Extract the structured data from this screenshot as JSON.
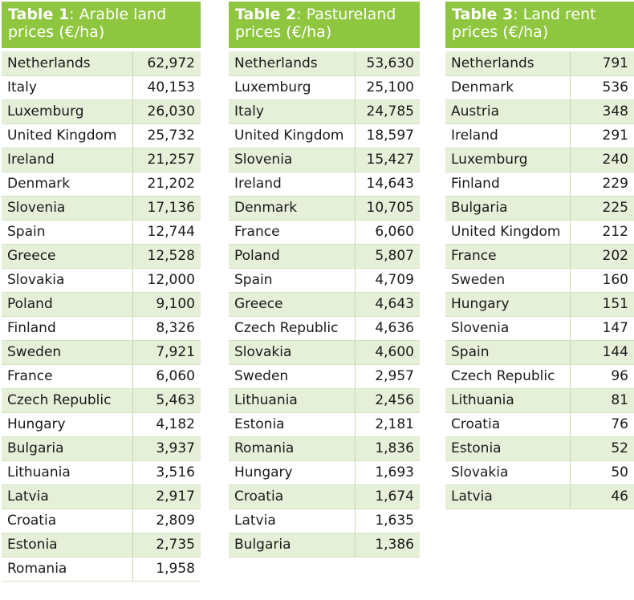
{
  "tables": [
    {
      "title_bold": "Table 1",
      "title_rest": ": Arable land prices (€/ha)",
      "rows": [
        [
          "Netherlands",
          "62,972"
        ],
        [
          "Italy",
          "40,153"
        ],
        [
          "Luxemburg",
          "26,030"
        ],
        [
          "United Kingdom",
          "25,732"
        ],
        [
          "Ireland",
          "21,257"
        ],
        [
          "Denmark",
          "21,202"
        ],
        [
          "Slovenia",
          "17,136"
        ],
        [
          "Spain",
          "12,744"
        ],
        [
          "Greece",
          "12,528"
        ],
        [
          "Slovakia",
          "12,000"
        ],
        [
          "Poland",
          "9,100"
        ],
        [
          "Finland",
          "8,326"
        ],
        [
          "Sweden",
          "7,921"
        ],
        [
          "France",
          "6,060"
        ],
        [
          "Czech Republic",
          "5,463"
        ],
        [
          "Hungary",
          "4,182"
        ],
        [
          "Bulgaria",
          "3,937"
        ],
        [
          "Lithuania",
          "3,516"
        ],
        [
          "Latvia",
          "2,917"
        ],
        [
          "Croatia",
          "2,809"
        ],
        [
          "Estonia",
          "2,735"
        ],
        [
          "Romania",
          "1,958"
        ]
      ]
    },
    {
      "title_bold": "Table 2",
      "title_rest": ": Pastureland prices (€/ha)",
      "rows": [
        [
          "Netherlands",
          "53,630"
        ],
        [
          "Luxemburg",
          "25,100"
        ],
        [
          "Italy",
          "24,785"
        ],
        [
          "United Kingdom",
          "18,597"
        ],
        [
          "Slovenia",
          "15,427"
        ],
        [
          "Ireland",
          "14,643"
        ],
        [
          "Denmark",
          "10,705"
        ],
        [
          "France",
          "6,060"
        ],
        [
          "Poland",
          "5,807"
        ],
        [
          "Spain",
          "4,709"
        ],
        [
          "Greece",
          "4,643"
        ],
        [
          "Czech Republic",
          "4,636"
        ],
        [
          "Slovakia",
          "4,600"
        ],
        [
          "Sweden",
          "2,957"
        ],
        [
          "Lithuania",
          "2,456"
        ],
        [
          "Estonia",
          "2,181"
        ],
        [
          "Romania",
          "1,836"
        ],
        [
          "Hungary",
          "1,693"
        ],
        [
          "Croatia",
          "1,674"
        ],
        [
          "Latvia",
          "1,635"
        ],
        [
          "Bulgaria",
          "1,386"
        ]
      ]
    },
    {
      "title_bold": "Table 3",
      "title_rest": ": Land rent prices (€/ha)",
      "rows": [
        [
          "Netherlands",
          "791"
        ],
        [
          "Denmark",
          "536"
        ],
        [
          "Austria",
          "348"
        ],
        [
          "Ireland",
          "291"
        ],
        [
          "Luxemburg",
          "240"
        ],
        [
          "Finland",
          "229"
        ],
        [
          "Bulgaria",
          "225"
        ],
        [
          "United Kingdom",
          "212"
        ],
        [
          "France",
          "202"
        ],
        [
          "Sweden",
          "160"
        ],
        [
          "Hungary",
          "151"
        ],
        [
          "Slovenia",
          "147"
        ],
        [
          "Spain",
          "144"
        ],
        [
          "Czech Republic",
          "96"
        ],
        [
          "Lithuania",
          "81"
        ],
        [
          "Croatia",
          "76"
        ],
        [
          "Estonia",
          "52"
        ],
        [
          "Slovakia",
          "50"
        ],
        [
          "Latvia",
          "46"
        ]
      ]
    }
  ]
}
